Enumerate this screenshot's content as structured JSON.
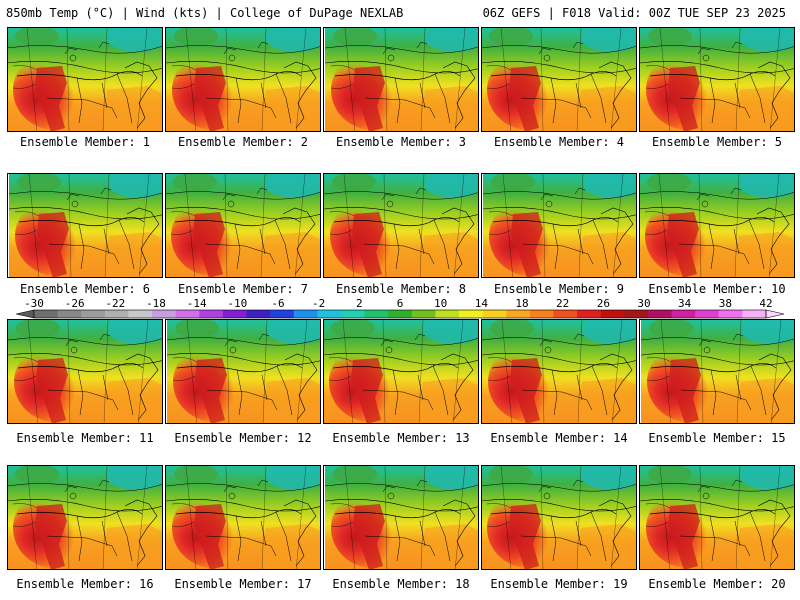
{
  "header": {
    "title_left": "850mb Temp (°C) | Wind (kts) | College of DuPage NEXLAB",
    "title_right": "06Z GEFS | F018 Valid: 00Z TUE SEP 23 2025"
  },
  "colorbar": {
    "tick_labels": [
      "-30",
      "-26",
      "-22",
      "-18",
      "-14",
      "-10",
      "-6",
      "-2",
      "2",
      "6",
      "10",
      "14",
      "18",
      "22",
      "26",
      "30",
      "34",
      "38",
      "42"
    ],
    "bin_colors": [
      "#6e6e6e",
      "#888888",
      "#9c9c9c",
      "#b0b0b0",
      "#c8c8c8",
      "#c5a0e0",
      "#d070e8",
      "#b040e0",
      "#8020d0",
      "#4020c0",
      "#2040e0",
      "#2090f0",
      "#20c0e0",
      "#20d0b0",
      "#20c070",
      "#30b030",
      "#70c020",
      "#c0e020",
      "#f0f020",
      "#f8d020",
      "#f8a820",
      "#f88020",
      "#f05020",
      "#e02020",
      "#c01010",
      "#a01818",
      "#b01060",
      "#d020a0",
      "#e040d0",
      "#f070f0",
      "#f8b0f8"
    ]
  },
  "members": [
    {
      "label": "Ensemble Member: 1"
    },
    {
      "label": "Ensemble Member: 2"
    },
    {
      "label": "Ensemble Member: 3"
    },
    {
      "label": "Ensemble Member: 4"
    },
    {
      "label": "Ensemble Member: 5"
    },
    {
      "label": "Ensemble Member: 6"
    },
    {
      "label": "Ensemble Member: 7"
    },
    {
      "label": "Ensemble Member: 8"
    },
    {
      "label": "Ensemble Member: 9"
    },
    {
      "label": "Ensemble Member: 10"
    },
    {
      "label": "Ensemble Member: 11"
    },
    {
      "label": "Ensemble Member: 12"
    },
    {
      "label": "Ensemble Member: 13"
    },
    {
      "label": "Ensemble Member: 14"
    },
    {
      "label": "Ensemble Member: 15"
    },
    {
      "label": "Ensemble Member: 16"
    },
    {
      "label": "Ensemble Member: 17"
    },
    {
      "label": "Ensemble Member: 18"
    },
    {
      "label": "Ensemble Member: 19"
    },
    {
      "label": "Ensemble Member: 20"
    }
  ]
}
